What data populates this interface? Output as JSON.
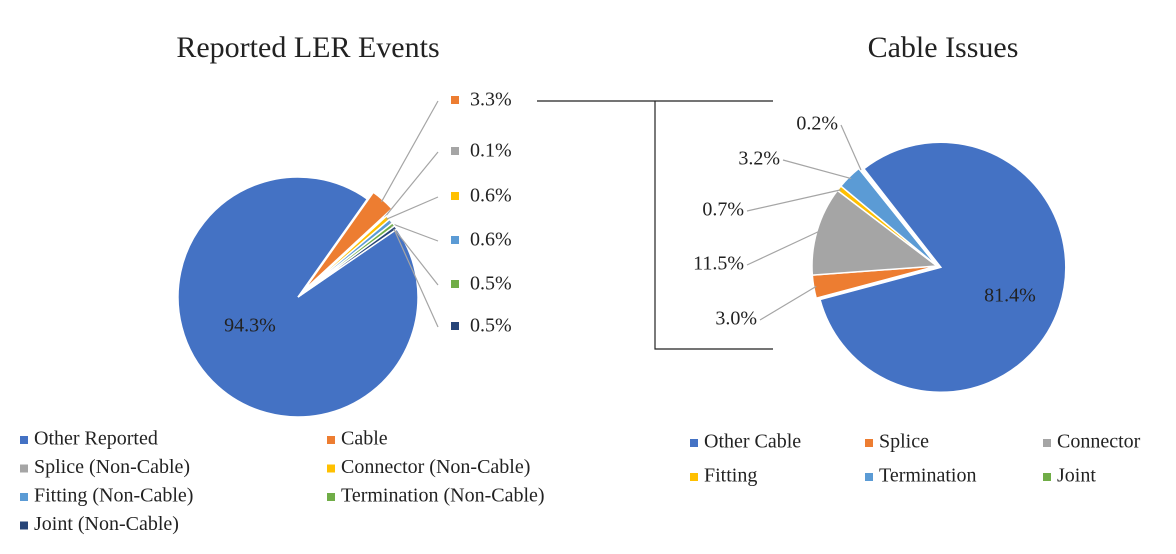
{
  "chart_data": [
    {
      "type": "pie",
      "title": "Reported LER Events",
      "categories": [
        "Other Reported",
        "Cable",
        "Splice (Non-Cable)",
        "Connector (Non-Cable)",
        "Fitting (Non-Cable)",
        "Termination (Non-Cable)",
        "Joint (Non-Cable)"
      ],
      "values": [
        94.3,
        3.3,
        0.1,
        0.6,
        0.6,
        0.5,
        0.5
      ],
      "value_labels": [
        "94.3%",
        "3.3%",
        "0.1%",
        "0.6%",
        "0.6%",
        "0.5%",
        "0.5%"
      ],
      "colors": [
        "#4472c4",
        "#ed7d31",
        "#a5a5a5",
        "#ffc000",
        "#5b9bd5",
        "#70ad47",
        "#264478"
      ],
      "legend": "bottom"
    },
    {
      "type": "pie",
      "title": "Cable Issues",
      "categories": [
        "Other Cable",
        "Splice",
        "Connector",
        "Fitting",
        "Termination",
        "Joint"
      ],
      "values": [
        81.4,
        3.0,
        11.5,
        0.7,
        3.2,
        0.2
      ],
      "value_labels": [
        "81.4%",
        "3.0%",
        "11.5%",
        "0.7%",
        "3.2%",
        "0.2%"
      ],
      "colors": [
        "#4472c4",
        "#ed7d31",
        "#a5a5a5",
        "#ffc000",
        "#5b9bd5",
        "#70ad47"
      ],
      "legend": "bottom"
    }
  ]
}
